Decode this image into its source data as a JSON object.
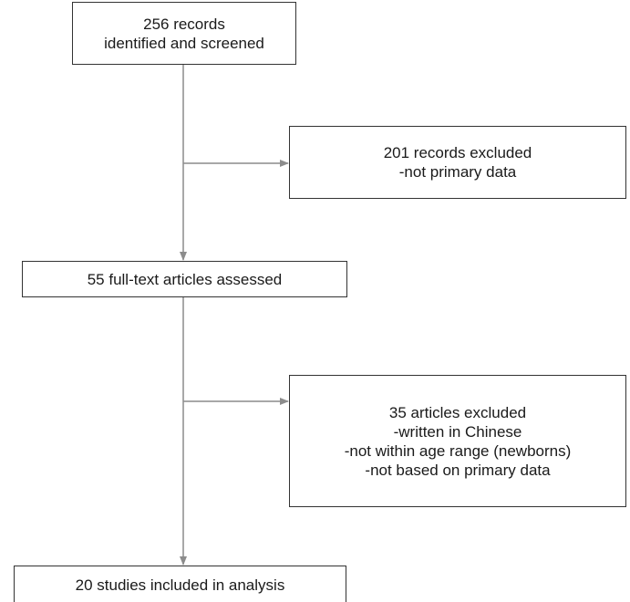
{
  "flowchart": {
    "identified": {
      "lines": [
        "256 records",
        "identified and screened"
      ]
    },
    "excluded_records": {
      "lines": [
        "201 records excluded",
        "-not primary data"
      ]
    },
    "assessed": {
      "lines": [
        "55 full-text articles assessed"
      ]
    },
    "excluded_articles": {
      "lines": [
        "35 articles excluded",
        "-written in Chinese",
        "-not within age range (newborns)",
        "-not based on primary data"
      ]
    },
    "included": {
      "lines": [
        "20 studies included in analysis"
      ]
    }
  },
  "colors": {
    "connector": "#8c8c8c",
    "box_border": "#333333",
    "text": "#1a1a1a"
  }
}
